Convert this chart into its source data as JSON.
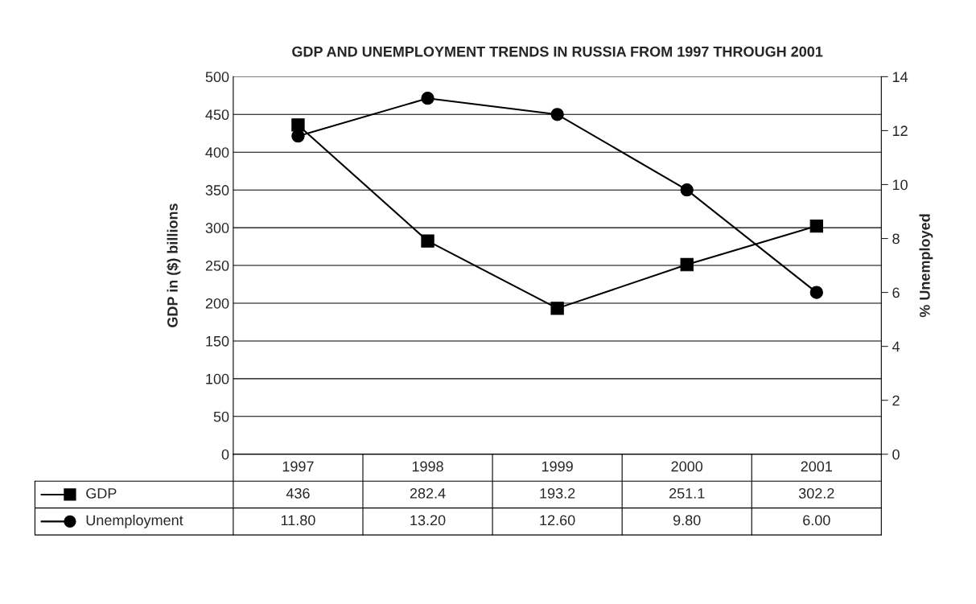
{
  "chart_data": {
    "type": "line",
    "title": "GDP AND UNEMPLOYMENT TRENDS IN RUSSIA FROM 1997 THROUGH 2001",
    "categories": [
      "1997",
      "1998",
      "1999",
      "2000",
      "2001"
    ],
    "series": [
      {
        "name": "GDP",
        "color": "#000000",
        "marker": "square",
        "values": [
          436,
          282.4,
          193.2,
          251.1,
          302.2
        ],
        "value_labels": [
          "436",
          "282.4",
          "193.2",
          "251.1",
          "302.2"
        ]
      },
      {
        "name": "Unemployment",
        "color": "#000000",
        "marker": "circle",
        "axis": "y2",
        "values": [
          11.8,
          13.2,
          12.6,
          9.8,
          6.0
        ],
        "value_labels": [
          "11.80",
          "13.20",
          "12.60",
          "9.80",
          "6.00"
        ]
      }
    ],
    "ylabel": "GDP in ($) billions",
    "y2label": "% Unemployed",
    "ylim": [
      0,
      500
    ],
    "yticks": [
      0,
      50,
      100,
      150,
      200,
      250,
      300,
      350,
      400,
      450,
      500
    ],
    "y2lim": [
      0,
      14
    ],
    "y2ticks": [
      0,
      2,
      4,
      6,
      8,
      10,
      12,
      14
    ],
    "grid": "y",
    "legend": "bottom",
    "line_style": "solid"
  }
}
